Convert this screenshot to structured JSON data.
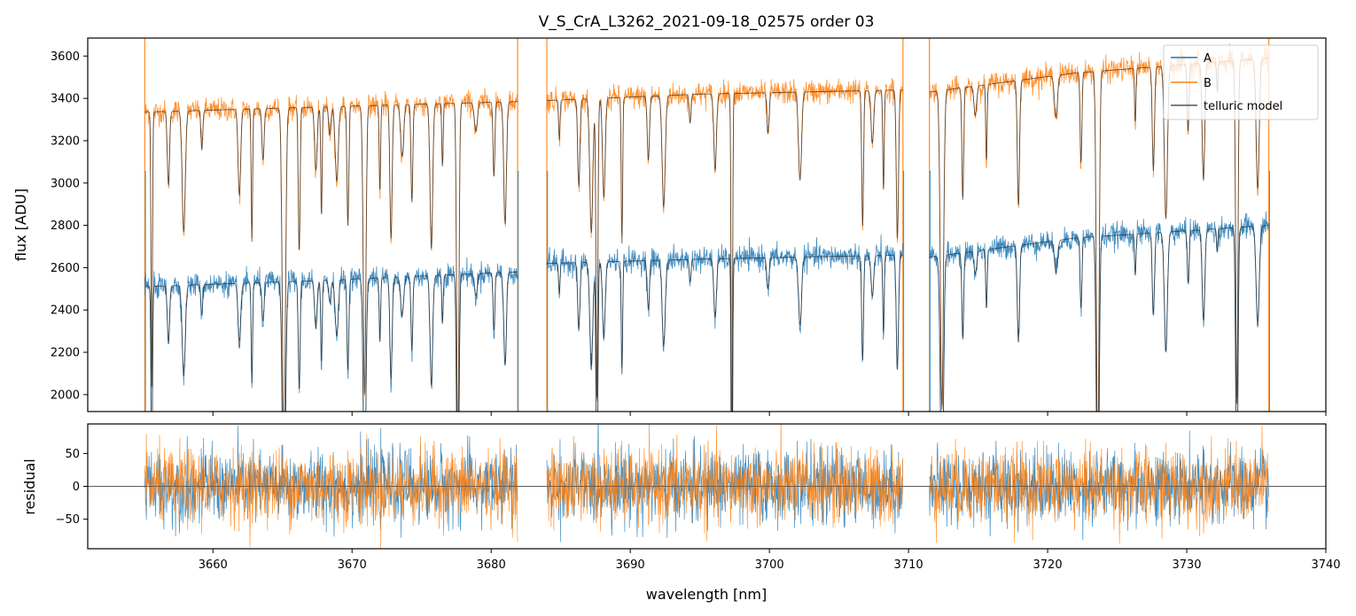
{
  "chart_data": [
    {
      "type": "line",
      "panel": "main",
      "title": "V_S_CrA_L3262_2021-09-18_02575  order 03",
      "xlabel": "",
      "ylabel": "flux [ADU]",
      "xlim": [
        3651,
        3740
      ],
      "ylim": [
        1920,
        3685
      ],
      "yticks": [
        "2000",
        "2200",
        "2400",
        "2600",
        "2800",
        "3000",
        "3200",
        "3400",
        "3600"
      ],
      "segments": [
        [
          3655.1,
          3681.9
        ],
        [
          3684.0,
          3709.6
        ],
        [
          3711.5,
          3735.9
        ]
      ],
      "series": [
        {
          "name": "A",
          "color": "#1f77b4",
          "baseline": [
            [
              3655.1,
              2510
            ],
            [
              3668,
              2540
            ],
            [
              3681.9,
              2580
            ],
            [
              3684,
              2620
            ],
            [
              3695,
              2640
            ],
            [
              3709.6,
              2660
            ],
            [
              3711.5,
              2650
            ],
            [
              3722,
              2740
            ],
            [
              3735.9,
              2800
            ]
          ]
        },
        {
          "name": "B",
          "color": "#ff7f0e",
          "baseline": [
            [
              3655.1,
              3335
            ],
            [
              3668,
              3360
            ],
            [
              3681.9,
              3385
            ],
            [
              3684,
              3390
            ],
            [
              3695,
              3420
            ],
            [
              3709.6,
              3440
            ],
            [
              3711.5,
              3430
            ],
            [
              3722,
              3520
            ],
            [
              3735.9,
              3590
            ]
          ]
        },
        {
          "name": "telluric model",
          "color": "#333333"
        }
      ],
      "absorption_lines_nm": [
        3655.6,
        3656.8,
        3657.9,
        3659.2,
        3661.9,
        3662.8,
        3663.6,
        3665.1,
        3666.2,
        3667.4,
        3667.8,
        3668.4,
        3668.9,
        3669.7,
        3670.9,
        3672.0,
        3672.8,
        3673.6,
        3674.3,
        3675.7,
        3676.5,
        3677.6,
        3678.9,
        3680.2,
        3681.0,
        3684.9,
        3686.3,
        3687.2,
        3687.6,
        3688.1,
        3689.4,
        3691.3,
        3692.4,
        3694.3,
        3696.1,
        3697.3,
        3699.9,
        3702.2,
        3706.7,
        3707.4,
        3708.2,
        3709.2,
        3712.4,
        3713.9,
        3714.8,
        3715.6,
        3717.9,
        3720.6,
        3722.4,
        3723.6,
        3726.3,
        3727.6,
        3728.5,
        3730.1,
        3731.2,
        3732.2,
        3733.6,
        3735.1
      ],
      "legend": {
        "position": "top-right",
        "entries": [
          "A",
          "B",
          "telluric model"
        ]
      }
    },
    {
      "type": "line",
      "panel": "residual",
      "xlabel": "wavelength [nm]",
      "ylabel": "residual",
      "xlim": [
        3651,
        3740
      ],
      "ylim": [
        -95,
        95
      ],
      "yticks": [
        "50",
        "0",
        "−50"
      ],
      "xticks": [
        "3660",
        "3670",
        "3680",
        "3690",
        "3700",
        "3710",
        "3720",
        "3730",
        "3740"
      ],
      "zero_line": 0,
      "series": [
        {
          "name": "A",
          "color": "#1f77b4",
          "noise_sigma": 28
        },
        {
          "name": "B",
          "color": "#ff7f0e",
          "noise_sigma": 28
        }
      ]
    }
  ]
}
